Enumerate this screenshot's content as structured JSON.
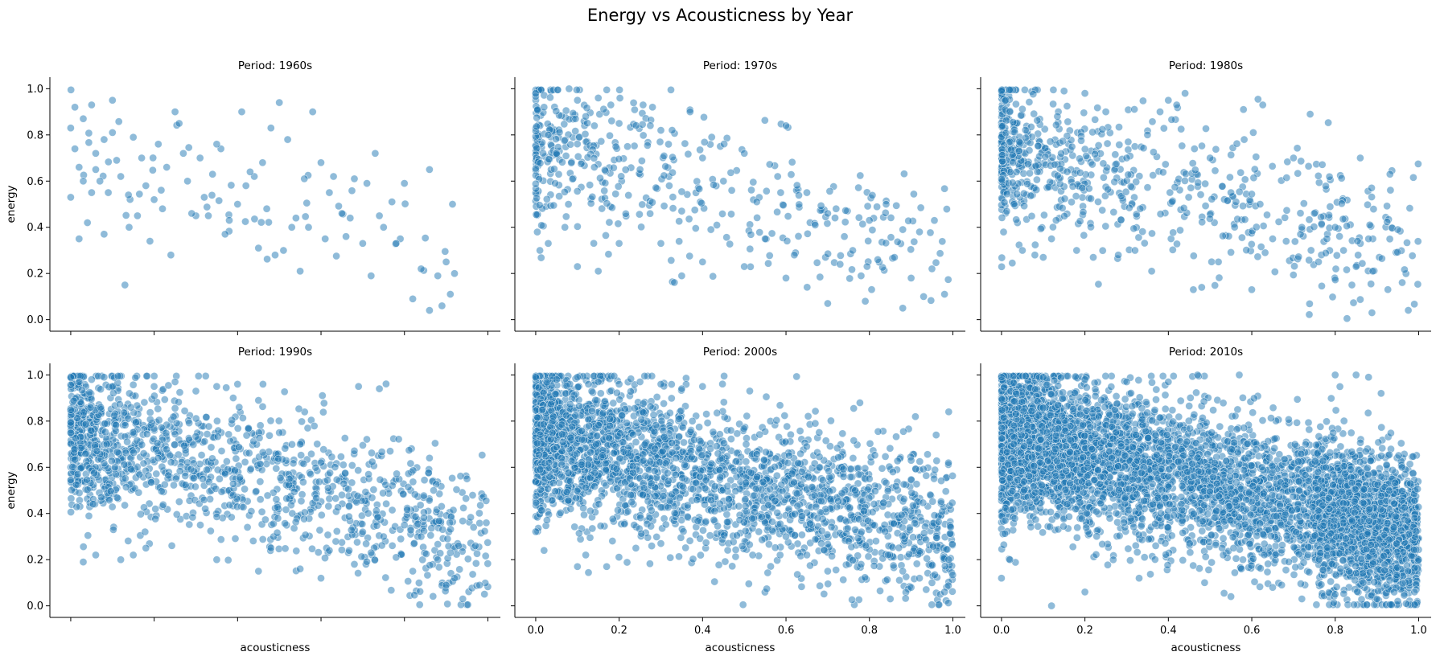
{
  "figure": {
    "title": "Energy vs Acousticness by Year",
    "xlabel": "acousticness",
    "ylabel": "energy",
    "marker_color": "#1f77b4",
    "marker_edge": "#ffffff",
    "marker_alpha": 0.5
  },
  "chart_data": [
    {
      "type": "scatter",
      "title": "Period: 1960s",
      "xlabel": "",
      "ylabel": "energy",
      "xlim": [
        -0.05,
        1.03
      ],
      "ylim": [
        -0.05,
        1.05
      ],
      "xticks": [
        "0.0",
        "0.2",
        "0.4",
        "0.6",
        "0.8",
        "1.0"
      ],
      "yticks": [
        "0.0",
        "0.2",
        "0.4",
        "0.6",
        "0.8",
        "1.0"
      ],
      "show_xtick_labels": false,
      "show_ytick_labels": true,
      "grid": false,
      "trend": "negative",
      "points": [
        [
          0.0,
          0.83
        ],
        [
          0.01,
          0.92
        ],
        [
          0.02,
          0.66
        ],
        [
          0.0,
          0.53
        ],
        [
          0.03,
          0.87
        ],
        [
          0.05,
          0.93
        ],
        [
          0.06,
          0.72
        ],
        [
          0.08,
          0.78
        ],
        [
          0.09,
          0.55
        ],
        [
          0.1,
          0.95
        ],
        [
          0.11,
          0.69
        ],
        [
          0.12,
          0.62
        ],
        [
          0.02,
          0.35
        ],
        [
          0.04,
          0.42
        ],
        [
          0.07,
          0.6
        ],
        [
          0.13,
          0.15
        ],
        [
          0.15,
          0.79
        ],
        [
          0.17,
          0.7
        ],
        [
          0.18,
          0.58
        ],
        [
          0.2,
          0.52
        ],
        [
          0.21,
          0.76
        ],
        [
          0.22,
          0.48
        ],
        [
          0.24,
          0.28
        ],
        [
          0.25,
          0.9
        ],
        [
          0.26,
          0.85
        ],
        [
          0.27,
          0.72
        ],
        [
          0.28,
          0.6
        ],
        [
          0.3,
          0.45
        ],
        [
          0.32,
          0.53
        ],
        [
          0.34,
          0.63
        ],
        [
          0.36,
          0.74
        ],
        [
          0.38,
          0.43
        ],
        [
          0.4,
          0.5
        ],
        [
          0.41,
          0.9
        ],
        [
          0.42,
          0.58
        ],
        [
          0.44,
          0.62
        ],
        [
          0.46,
          0.68
        ],
        [
          0.47,
          0.48
        ],
        [
          0.48,
          0.83
        ],
        [
          0.5,
          0.94
        ],
        [
          0.51,
          0.3
        ],
        [
          0.52,
          0.78
        ],
        [
          0.54,
          0.44
        ],
        [
          0.55,
          0.21
        ],
        [
          0.56,
          0.61
        ],
        [
          0.58,
          0.9
        ],
        [
          0.6,
          0.68
        ],
        [
          0.61,
          0.35
        ],
        [
          0.63,
          0.62
        ],
        [
          0.65,
          0.46
        ],
        [
          0.66,
          0.36
        ],
        [
          0.68,
          0.61
        ],
        [
          0.7,
          0.33
        ],
        [
          0.72,
          0.19
        ],
        [
          0.73,
          0.72
        ],
        [
          0.75,
          0.4
        ],
        [
          0.77,
          0.51
        ],
        [
          0.79,
          0.35
        ],
        [
          0.8,
          0.59
        ],
        [
          0.82,
          0.09
        ],
        [
          0.84,
          0.22
        ],
        [
          0.86,
          0.04
        ],
        [
          0.86,
          0.65
        ],
        [
          0.88,
          0.19
        ],
        [
          0.89,
          0.06
        ],
        [
          0.9,
          0.25
        ],
        [
          0.91,
          0.11
        ],
        [
          0.92,
          0.2
        ],
        [
          0.14,
          0.4
        ],
        [
          0.19,
          0.34
        ],
        [
          0.33,
          0.45
        ],
        [
          0.37,
          0.37
        ],
        [
          0.45,
          0.31
        ],
        [
          0.06,
          0.65
        ],
        [
          0.16,
          0.45
        ],
        [
          0.23,
          0.66
        ],
        [
          0.29,
          0.46
        ],
        [
          0.31,
          0.7
        ],
        [
          0.35,
          0.76
        ],
        [
          0.43,
          0.64
        ],
        [
          0.49,
          0.28
        ],
        [
          0.53,
          0.4
        ],
        [
          0.57,
          0.4
        ],
        [
          0.62,
          0.55
        ],
        [
          0.67,
          0.44
        ],
        [
          0.71,
          0.59
        ],
        [
          0.74,
          0.45
        ],
        [
          0.78,
          0.33
        ],
        [
          0.01,
          0.74
        ],
        [
          0.03,
          0.6
        ],
        [
          0.05,
          0.55
        ],
        [
          0.08,
          0.37
        ],
        [
          0.1,
          0.81
        ]
      ],
      "synthetic": {
        "n": 40,
        "seed": 11
      }
    },
    {
      "type": "scatter",
      "title": "Period: 1970s",
      "xlabel": "",
      "ylabel": "",
      "xlim": [
        -0.05,
        1.03
      ],
      "ylim": [
        -0.05,
        1.05
      ],
      "xticks": [
        "0.0",
        "0.2",
        "0.4",
        "0.6",
        "0.8",
        "1.0"
      ],
      "yticks": [
        "0.0",
        "0.2",
        "0.4",
        "0.6",
        "0.8",
        "1.0"
      ],
      "show_xtick_labels": false,
      "show_ytick_labels": false,
      "grid": false,
      "trend": "negative",
      "points": [
        [
          0.0,
          0.98
        ],
        [
          0.02,
          0.92
        ],
        [
          0.03,
          0.8
        ],
        [
          0.05,
          0.72
        ],
        [
          0.08,
          1.0
        ],
        [
          0.1,
          0.95
        ],
        [
          0.12,
          0.88
        ],
        [
          0.15,
          0.96
        ],
        [
          0.18,
          0.93
        ],
        [
          0.2,
          0.85
        ],
        [
          0.22,
          0.75
        ],
        [
          0.25,
          0.65
        ],
        [
          0.28,
          0.92
        ],
        [
          0.3,
          0.82
        ],
        [
          0.32,
          0.58
        ],
        [
          0.35,
          0.47
        ],
        [
          0.37,
          0.9
        ],
        [
          0.4,
          0.7
        ],
        [
          0.42,
          0.39
        ],
        [
          0.45,
          0.6
        ],
        [
          0.47,
          0.56
        ],
        [
          0.5,
          0.72
        ],
        [
          0.53,
          0.51
        ],
        [
          0.55,
          0.35
        ],
        [
          0.58,
          0.62
        ],
        [
          0.6,
          0.84
        ],
        [
          0.62,
          0.28
        ],
        [
          0.65,
          0.55
        ],
        [
          0.67,
          0.41
        ],
        [
          0.7,
          0.07
        ],
        [
          0.72,
          0.48
        ],
        [
          0.74,
          0.36
        ],
        [
          0.76,
          0.3
        ],
        [
          0.79,
          0.08
        ],
        [
          0.8,
          0.43
        ],
        [
          0.82,
          0.26
        ],
        [
          0.84,
          0.5
        ],
        [
          0.86,
          0.27
        ],
        [
          0.88,
          0.05
        ],
        [
          0.88,
          0.39
        ],
        [
          0.9,
          0.18
        ],
        [
          0.92,
          0.38
        ],
        [
          0.93,
          0.1
        ],
        [
          0.95,
          0.22
        ],
        [
          0.98,
          0.11
        ],
        [
          0.01,
          0.3
        ],
        [
          0.03,
          0.33
        ],
        [
          0.07,
          0.4
        ],
        [
          0.1,
          0.23
        ],
        [
          0.15,
          0.21
        ],
        [
          0.2,
          0.33
        ],
        [
          0.3,
          0.33
        ],
        [
          0.35,
          0.19
        ],
        [
          0.4,
          0.25
        ],
        [
          0.5,
          0.23
        ],
        [
          0.6,
          0.18
        ],
        [
          0.7,
          0.46
        ],
        [
          0.78,
          0.19
        ]
      ],
      "synthetic": {
        "n": 430,
        "seed": 22
      }
    },
    {
      "type": "scatter",
      "title": "Period: 1980s",
      "xlabel": "",
      "ylabel": "",
      "xlim": [
        -0.05,
        1.03
      ],
      "ylim": [
        -0.05,
        1.05
      ],
      "xticks": [
        "0.0",
        "0.2",
        "0.4",
        "0.6",
        "0.8",
        "1.0"
      ],
      "yticks": [
        "0.0",
        "0.2",
        "0.4",
        "0.6",
        "0.8",
        "1.0"
      ],
      "show_xtick_labels": false,
      "show_ytick_labels": false,
      "grid": false,
      "trend": "negative",
      "points": [
        [
          0.0,
          0.99
        ],
        [
          0.01,
          0.95
        ],
        [
          0.02,
          0.9
        ],
        [
          0.03,
          0.5
        ],
        [
          0.05,
          0.3
        ],
        [
          0.08,
          0.28
        ],
        [
          0.1,
          0.27
        ],
        [
          0.15,
          0.99
        ],
        [
          0.2,
          0.98
        ],
        [
          0.25,
          0.9
        ],
        [
          0.3,
          0.7
        ],
        [
          0.35,
          0.8
        ],
        [
          0.38,
          0.9
        ],
        [
          0.4,
          0.95
        ],
        [
          0.42,
          0.93
        ],
        [
          0.44,
          0.98
        ],
        [
          0.46,
          0.13
        ],
        [
          0.48,
          0.14
        ],
        [
          0.5,
          0.7
        ],
        [
          0.55,
          0.55
        ],
        [
          0.58,
          0.91
        ],
        [
          0.6,
          0.13
        ],
        [
          0.62,
          0.5
        ],
        [
          0.65,
          0.35
        ],
        [
          0.7,
          0.7
        ],
        [
          0.72,
          0.4
        ],
        [
          0.74,
          0.89
        ],
        [
          0.76,
          0.25
        ],
        [
          0.78,
          0.35
        ],
        [
          0.8,
          0.4
        ],
        [
          0.82,
          0.3
        ],
        [
          0.84,
          0.15
        ],
        [
          0.85,
          0.23
        ],
        [
          0.86,
          0.7
        ],
        [
          0.88,
          0.35
        ],
        [
          0.89,
          0.21
        ],
        [
          0.95,
          0.39
        ],
        [
          0.36,
          0.21
        ],
        [
          0.32,
          0.3
        ],
        [
          0.28,
          0.28
        ],
        [
          0.22,
          0.27
        ],
        [
          0.18,
          0.3
        ],
        [
          0.12,
          0.35
        ],
        [
          0.52,
          0.25
        ]
      ],
      "synthetic": {
        "n": 700,
        "seed": 33
      }
    },
    {
      "type": "scatter",
      "title": "Period: 1990s",
      "xlabel": "acousticness",
      "ylabel": "energy",
      "xlim": [
        -0.05,
        1.03
      ],
      "ylim": [
        -0.05,
        1.05
      ],
      "xticks": [
        "0.0",
        "0.2",
        "0.4",
        "0.6",
        "0.8",
        "1.0"
      ],
      "yticks": [
        "0.0",
        "0.2",
        "0.4",
        "0.6",
        "0.8",
        "1.0"
      ],
      "show_xtick_labels": false,
      "show_ytick_labels": true,
      "grid": false,
      "trend": "negative",
      "points": [
        [
          0.0,
          0.99
        ],
        [
          0.02,
          0.97
        ],
        [
          0.05,
          0.98
        ],
        [
          0.08,
          0.99
        ],
        [
          0.1,
          0.95
        ],
        [
          0.12,
          0.2
        ],
        [
          0.15,
          0.22
        ],
        [
          0.18,
          0.25
        ],
        [
          0.03,
          0.19
        ],
        [
          0.06,
          0.22
        ],
        [
          0.2,
          0.95
        ],
        [
          0.25,
          0.97
        ],
        [
          0.3,
          0.93
        ],
        [
          0.35,
          0.95
        ],
        [
          0.4,
          0.96
        ],
        [
          0.45,
          0.89
        ],
        [
          0.5,
          0.75
        ],
        [
          0.55,
          0.7
        ],
        [
          0.6,
          0.62
        ],
        [
          0.65,
          0.48
        ],
        [
          0.69,
          0.95
        ],
        [
          0.74,
          0.94
        ],
        [
          0.7,
          0.32
        ],
        [
          0.72,
          0.23
        ],
        [
          0.75,
          0.3
        ],
        [
          0.78,
          0.21
        ],
        [
          0.8,
          0.35
        ],
        [
          0.82,
          0.15
        ],
        [
          0.84,
          0.3
        ],
        [
          0.86,
          0.64
        ],
        [
          0.87,
          0.5
        ],
        [
          0.88,
          0.2
        ],
        [
          0.9,
          0.09
        ],
        [
          0.91,
          0.23
        ],
        [
          0.92,
          0.12
        ],
        [
          0.93,
          0.26
        ],
        [
          0.94,
          0.03
        ],
        [
          0.95,
          0.55
        ],
        [
          0.97,
          0.26
        ],
        [
          0.98,
          0.09
        ],
        [
          0.6,
          0.12
        ],
        [
          0.55,
          0.16
        ],
        [
          0.45,
          0.15
        ],
        [
          0.35,
          0.2
        ],
        [
          0.62,
          0.24
        ],
        [
          0.68,
          0.18
        ]
      ],
      "synthetic": {
        "n": 1300,
        "seed": 44
      }
    },
    {
      "type": "scatter",
      "title": "Period: 2000s",
      "xlabel": "acousticness",
      "ylabel": "",
      "xlim": [
        -0.05,
        1.03
      ],
      "ylim": [
        -0.05,
        1.05
      ],
      "xticks": [
        "0.0",
        "0.2",
        "0.4",
        "0.6",
        "0.8",
        "1.0"
      ],
      "yticks": [
        "0.0",
        "0.2",
        "0.4",
        "0.6",
        "0.8",
        "1.0"
      ],
      "show_xtick_labels": true,
      "show_ytick_labels": false,
      "grid": false,
      "trend": "negative",
      "points": [
        [
          0.0,
          0.99
        ],
        [
          0.05,
          0.98
        ],
        [
          0.1,
          0.99
        ],
        [
          0.15,
          0.97
        ],
        [
          0.2,
          0.96
        ],
        [
          0.25,
          0.97
        ],
        [
          0.3,
          0.96
        ],
        [
          0.35,
          0.94
        ],
        [
          0.4,
          0.95
        ],
        [
          0.1,
          0.17
        ],
        [
          0.17,
          0.17
        ],
        [
          0.02,
          0.24
        ],
        [
          0.12,
          0.22
        ],
        [
          0.24,
          0.25
        ],
        [
          0.3,
          0.27
        ],
        [
          0.85,
          0.03
        ],
        [
          0.88,
          0.15
        ],
        [
          0.9,
          0.08
        ],
        [
          0.92,
          0.12
        ],
        [
          0.95,
          0.1
        ],
        [
          0.97,
          0.05
        ],
        [
          0.98,
          0.06
        ],
        [
          0.99,
          0.2
        ],
        [
          0.99,
          0.84
        ],
        [
          0.96,
          0.74
        ],
        [
          0.9,
          0.63
        ],
        [
          0.8,
          0.55
        ],
        [
          0.78,
          0.18
        ],
        [
          0.75,
          0.28
        ],
        [
          0.7,
          0.15
        ],
        [
          0.65,
          0.22
        ],
        [
          0.6,
          0.3
        ],
        [
          0.55,
          0.36
        ]
      ],
      "synthetic": {
        "n": 2600,
        "seed": 55
      }
    },
    {
      "type": "scatter",
      "title": "Period: 2010s",
      "xlabel": "acousticness",
      "ylabel": "",
      "xlim": [
        -0.05,
        1.03
      ],
      "ylim": [
        -0.05,
        1.05
      ],
      "xticks": [
        "0.0",
        "0.2",
        "0.4",
        "0.6",
        "0.8",
        "1.0"
      ],
      "yticks": [
        "0.0",
        "0.2",
        "0.4",
        "0.6",
        "0.8",
        "1.0"
      ],
      "show_xtick_labels": true,
      "show_ytick_labels": false,
      "grid": false,
      "trend": "negative",
      "points": [
        [
          0.0,
          0.99
        ],
        [
          0.1,
          0.99
        ],
        [
          0.2,
          0.98
        ],
        [
          0.3,
          0.97
        ],
        [
          0.4,
          0.97
        ],
        [
          0.47,
          1.0
        ],
        [
          0.57,
          1.0
        ],
        [
          0.8,
          1.0
        ],
        [
          0.85,
          1.0
        ],
        [
          0.88,
          0.99
        ],
        [
          0.91,
          0.92
        ],
        [
          0.12,
          0.0
        ],
        [
          0.2,
          0.06
        ],
        [
          0.33,
          0.12
        ],
        [
          0.55,
          0.04
        ],
        [
          0.65,
          0.08
        ],
        [
          0.72,
          0.03
        ],
        [
          0.8,
          0.05
        ],
        [
          0.9,
          0.03
        ],
        [
          0.95,
          0.02
        ],
        [
          0.97,
          0.01
        ],
        [
          0.99,
          0.06
        ],
        [
          0.99,
          0.38
        ],
        [
          1.0,
          0.2
        ],
        [
          0.98,
          0.53
        ],
        [
          0.96,
          0.6
        ],
        [
          0.93,
          0.5
        ],
        [
          0.0,
          0.12
        ],
        [
          0.02,
          0.2
        ]
      ],
      "synthetic": {
        "n": 5600,
        "seed": 66
      }
    }
  ]
}
